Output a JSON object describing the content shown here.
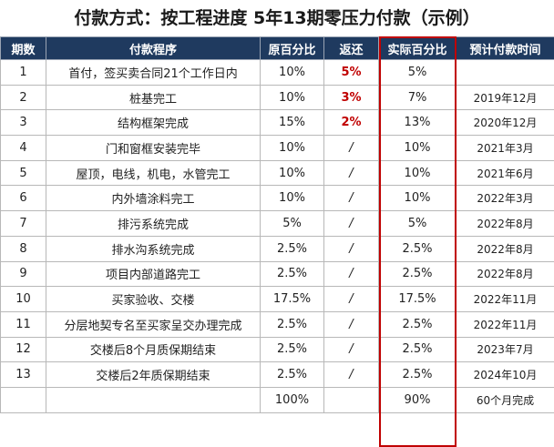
{
  "title": "付款方式：按工程进度 5年13期零压力付款（示例）",
  "headers": [
    "期数",
    "付款程序",
    "原百分比",
    "返还",
    "实际百分比",
    "预计付款时间"
  ],
  "rows": [
    {
      "period": "1",
      "step": "首付，签买卖合同21个工作日内",
      "original": "10%",
      "rebate": "5%",
      "actual": "5%",
      "date": "",
      "rebate_highlight": true
    },
    {
      "period": "2",
      "step": "桩基完工",
      "original": "10%",
      "rebate": "3%",
      "actual": "7%",
      "date": "2019年12月",
      "rebate_highlight": true
    },
    {
      "period": "3",
      "step": "结构框架完成",
      "original": "15%",
      "rebate": "2%",
      "actual": "13%",
      "date": "2020年12月",
      "rebate_highlight": true
    },
    {
      "period": "4",
      "step": "门和窗框安装完毕",
      "original": "10%",
      "rebate": "/",
      "actual": "10%",
      "date": "2021年3月",
      "rebate_highlight": false
    },
    {
      "period": "5",
      "step": "屋顶，电线，机电，水管完工",
      "original": "10%",
      "rebate": "/",
      "actual": "10%",
      "date": "2021年6月",
      "rebate_highlight": false
    },
    {
      "period": "6",
      "step": "内外墙涂料完工",
      "original": "10%",
      "rebate": "/",
      "actual": "10%",
      "date": "2022年3月",
      "rebate_highlight": false
    },
    {
      "period": "7",
      "step": "排污系统完成",
      "original": "5%",
      "rebate": "/",
      "actual": "5%",
      "date": "2022年8月",
      "rebate_highlight": false
    },
    {
      "period": "8",
      "step": "排水沟系统完成",
      "original": "2.5%",
      "rebate": "/",
      "actual": "2.5%",
      "date": "2022年8月",
      "rebate_highlight": false
    },
    {
      "period": "9",
      "step": "项目内部道路完工",
      "original": "2.5%",
      "rebate": "/",
      "actual": "2.5%",
      "date": "2022年8月",
      "rebate_highlight": false
    },
    {
      "period": "10",
      "step": "买家验收、交楼",
      "original": "17.5%",
      "rebate": "/",
      "actual": "17.5%",
      "date": "2022年11月",
      "rebate_highlight": false
    },
    {
      "period": "11",
      "step": "分层地契专名至买家呈交办理完成",
      "original": "2.5%",
      "rebate": "/",
      "actual": "2.5%",
      "date": "2022年11月",
      "rebate_highlight": false
    },
    {
      "period": "12",
      "step": "交楼后8个月质保期结束",
      "original": "2.5%",
      "rebate": "/",
      "actual": "2.5%",
      "date": "2023年7月",
      "rebate_highlight": false
    },
    {
      "period": "13",
      "step": "交楼后2年质保期结束",
      "original": "2.5%",
      "rebate": "/",
      "actual": "2.5%",
      "date": "2024年10月",
      "rebate_highlight": false
    }
  ],
  "totals": {
    "period": "",
    "step": "",
    "original": "100%",
    "rebate": "",
    "actual": "90%",
    "date": "60个月完成"
  },
  "colors": {
    "header_bg": "#1f3a5f",
    "rebate_red": "#c00000",
    "highlight_border": "#c00000"
  }
}
